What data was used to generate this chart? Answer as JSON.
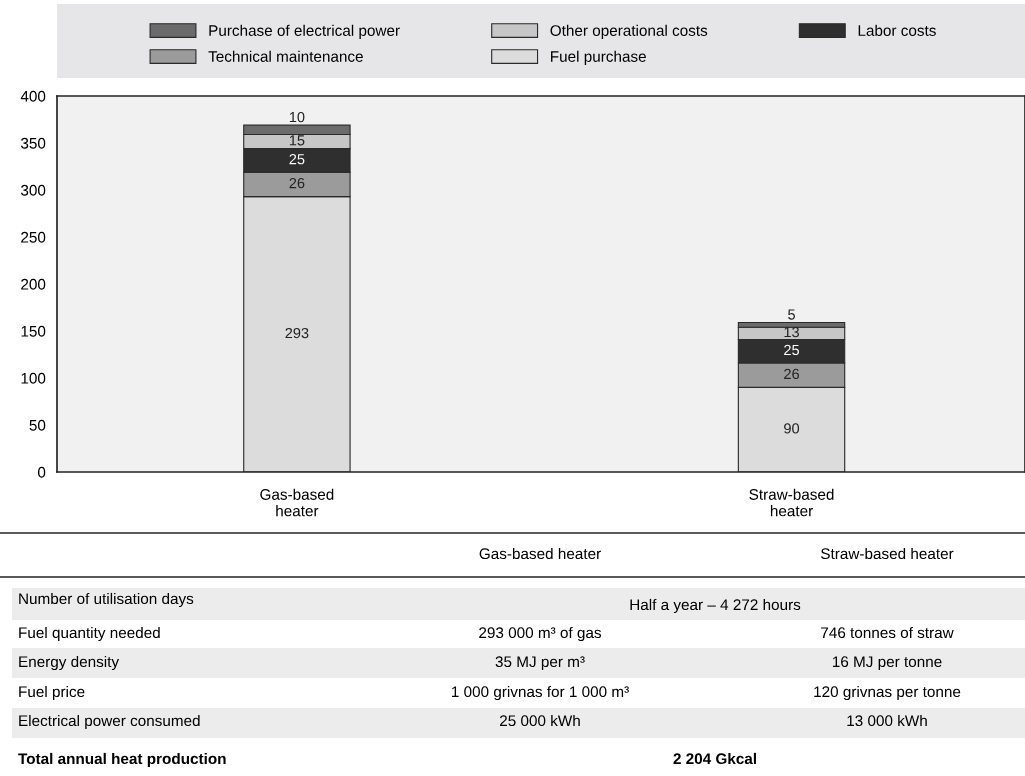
{
  "chart_data": {
    "type": "bar",
    "stacked": true,
    "categories": [
      "Gas-based\nheater",
      "Straw-based\nheater"
    ],
    "series": [
      {
        "name": "Fuel purchase",
        "color": "#dcdcdc",
        "values": [
          293,
          90
        ]
      },
      {
        "name": "Technical maintenance",
        "color": "#9b9b9b",
        "values": [
          26,
          26
        ]
      },
      {
        "name": "Labor costs",
        "color": "#2f2f2f",
        "values": [
          25,
          25
        ]
      },
      {
        "name": "Other operational costs",
        "color": "#c6c6c6",
        "values": [
          15,
          13
        ]
      },
      {
        "name": "Purchase of electrical power",
        "color": "#6b6b6b",
        "values": [
          10,
          5
        ]
      }
    ],
    "ylim": [
      0,
      400
    ],
    "yticks": [
      0,
      50,
      100,
      150,
      200,
      250,
      300,
      350,
      400
    ],
    "data_labels": true,
    "grid": false,
    "legend": "top",
    "annotations": [
      "Gas-based heater",
      "Straw-based heater",
      "Number of utilisation days",
      "Half a year – 4 272 hours",
      "Fuel quantity needed",
      "293 000 m³ of gas",
      "746 tonnes of straw",
      "Energy density",
      "35 MJ per m³",
      "16 MJ per tonne",
      "Fuel price",
      "1 000 grivnas for 1 000 m³",
      "120 grivnas per tonne",
      "Electrical power consumed",
      "25 000 kWh",
      "13 000 kWh",
      "Total annual heat production",
      "2 204 Gkcal"
    ]
  }
}
